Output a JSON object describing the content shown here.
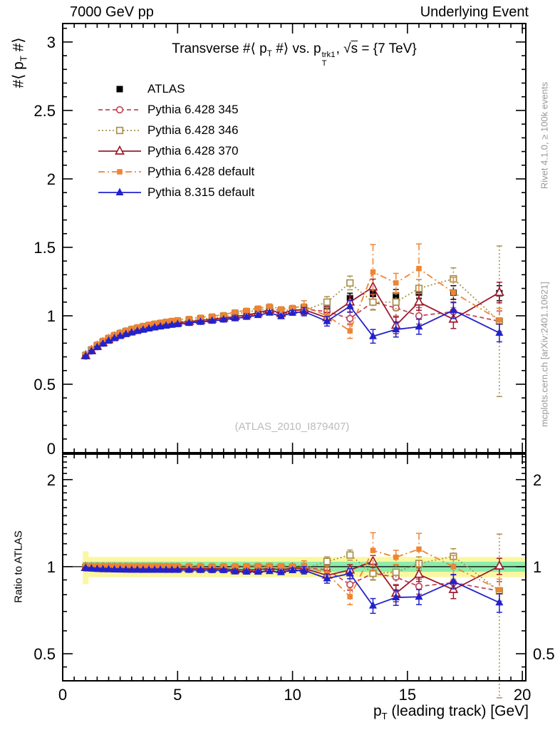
{
  "header": {
    "left": "7000 GeV pp",
    "right": "Underlying Event"
  },
  "title_parts": {
    "pre": "Transverse #⟨ p",
    "sub1": "T",
    "mid": " #⟩ vs. p",
    "sup2": "trk1",
    "sub2": "T",
    "sqrt": ", √",
    "s": "s",
    "post": " = {7 TeV}"
  },
  "ylabel_parts": {
    "pre": "#⟨ p",
    "sub": "T",
    "post": " #⟩"
  },
  "xlabel_parts": {
    "pre": "p",
    "sub": "T",
    "post": " (leading track) [GeV]"
  },
  "ratio_label": "Ratio to ATLAS",
  "watermark": "(ATLAS_2010_I879407)",
  "side_notes": {
    "top": "Rivet 4.1.0, ≥ 100k events",
    "bottom": "mcplots.cern.ch [arXiv:2401.10621]"
  },
  "colors": {
    "frame": "#000000",
    "band_green": "#8cecaa",
    "band_yellow": "#faf7a0",
    "note_gray": "#999999",
    "watermark_gray": "#bbbbbb"
  },
  "chart_data": {
    "type": "line",
    "title": "Transverse #⟨ p_T #⟩ vs. p_T^trk1, √s = {7 TeV}",
    "xlabel": "p_T (leading track) [GeV]",
    "ylabel": "#⟨ p_T #⟩",
    "ratio_ylabel": "Ratio to ATLAS",
    "xlim": [
      0,
      20.15
    ],
    "ylim_main": [
      0,
      3.135
    ],
    "ylim_ratio": [
      0.403,
      2.45
    ],
    "ratio_scale": "log",
    "x_ticks": [
      0,
      5,
      10,
      15,
      20
    ],
    "main_y_ticks": [
      0.5,
      1,
      1.5,
      2,
      2.5,
      3
    ],
    "main_y_zero_label": "0",
    "ratio_y_ticks": [
      0.5,
      1,
      2
    ],
    "ratio_y_minor": [
      0.45,
      0.6,
      0.7,
      0.8,
      0.9,
      1.1,
      1.2,
      1.3,
      1.4,
      1.5,
      1.6,
      1.7,
      1.8,
      1.9,
      2.1,
      2.2,
      2.3,
      2.4
    ],
    "legend_position": "top-left",
    "grid": false,
    "bands": {
      "x_start": 0.875,
      "first_bin_end": 1.125,
      "yellow_first": 0.13,
      "yellow": 0.08,
      "green": 0.04
    },
    "x": [
      1.0,
      1.25,
      1.5,
      1.75,
      2.0,
      2.25,
      2.5,
      2.75,
      3.0,
      3.25,
      3.5,
      3.75,
      4.0,
      4.25,
      4.5,
      4.75,
      5.0,
      5.5,
      6.0,
      6.5,
      7.0,
      7.5,
      8.0,
      8.5,
      9.0,
      9.5,
      10.0,
      10.5,
      11.5,
      12.5,
      13.5,
      14.5,
      15.5,
      17.0,
      19.0
    ],
    "series": [
      {
        "name": "ATLAS",
        "color": "#000000",
        "marker": "fsq",
        "msize": 9,
        "line": "none",
        "dash": "",
        "is_reference": true,
        "values": [
          0.713,
          0.752,
          0.785,
          0.812,
          0.835,
          0.855,
          0.872,
          0.887,
          0.9,
          0.911,
          0.921,
          0.93,
          0.938,
          0.945,
          0.952,
          0.958,
          0.963,
          0.972,
          0.981,
          0.99,
          1.0,
          1.02,
          1.032,
          1.046,
          1.06,
          1.042,
          1.052,
          1.06,
          1.055,
          1.13,
          1.16,
          1.15,
          1.17,
          1.17,
          1.165
        ],
        "errors": [
          0.008,
          0.008,
          0.008,
          0.008,
          0.008,
          0.008,
          0.008,
          0.008,
          0.009,
          0.009,
          0.009,
          0.009,
          0.01,
          0.01,
          0.01,
          0.01,
          0.01,
          0.011,
          0.012,
          0.012,
          0.013,
          0.014,
          0.015,
          0.016,
          0.018,
          0.018,
          0.02,
          0.025,
          0.028,
          0.035,
          0.04,
          0.042,
          0.045,
          0.05,
          0.055
        ]
      },
      {
        "name": "Pythia 6.428 345",
        "color": "#c0485a",
        "marker": "ocir",
        "msize": 8.6,
        "line": "dash",
        "dash": "6 4",
        "is_reference": false,
        "values": [
          0.706,
          0.743,
          0.774,
          0.8,
          0.822,
          0.841,
          0.857,
          0.871,
          0.883,
          0.894,
          0.903,
          0.912,
          0.919,
          0.926,
          0.932,
          0.938,
          0.943,
          0.951,
          0.959,
          0.967,
          0.976,
          0.986,
          0.997,
          1.012,
          1.038,
          1.008,
          1.032,
          1.05,
          1.03,
          0.98,
          1.1,
          1.058,
          1.0,
          1.03,
          0.96
        ],
        "errors": [
          0.006,
          0.006,
          0.006,
          0.006,
          0.006,
          0.006,
          0.006,
          0.006,
          0.006,
          0.006,
          0.006,
          0.006,
          0.007,
          0.007,
          0.007,
          0.007,
          0.007,
          0.008,
          0.009,
          0.009,
          0.01,
          0.011,
          0.012,
          0.014,
          0.016,
          0.016,
          0.018,
          0.035,
          0.038,
          0.045,
          0.055,
          0.06,
          0.06,
          0.065,
          0.075
        ]
      },
      {
        "name": "Pythia 6.428 346",
        "color": "#a8924d",
        "marker": "osq",
        "msize": 8.6,
        "line": "dot",
        "dash": "2 3",
        "is_reference": false,
        "values": [
          0.71,
          0.748,
          0.78,
          0.807,
          0.83,
          0.85,
          0.866,
          0.881,
          0.894,
          0.905,
          0.915,
          0.924,
          0.932,
          0.939,
          0.946,
          0.952,
          0.957,
          0.966,
          0.974,
          0.983,
          0.993,
          1.012,
          1.026,
          1.042,
          1.056,
          1.036,
          1.046,
          1.04,
          1.1,
          1.24,
          1.1,
          1.1,
          1.2,
          1.27,
          0.96
        ],
        "errors": [
          0.006,
          0.006,
          0.006,
          0.006,
          0.006,
          0.006,
          0.006,
          0.006,
          0.006,
          0.006,
          0.006,
          0.006,
          0.007,
          0.007,
          0.007,
          0.007,
          0.007,
          0.008,
          0.009,
          0.009,
          0.01,
          0.011,
          0.012,
          0.014,
          0.016,
          0.016,
          0.018,
          0.038,
          0.04,
          0.05,
          0.058,
          0.062,
          0.065,
          0.08,
          0.55
        ]
      },
      {
        "name": "Pythia 6.428 370",
        "color": "#9e1a2c",
        "marker": "otri",
        "msize": 11,
        "line": "solid",
        "dash": "",
        "is_reference": false,
        "values": [
          0.708,
          0.745,
          0.777,
          0.803,
          0.826,
          0.845,
          0.862,
          0.876,
          0.888,
          0.899,
          0.908,
          0.917,
          0.925,
          0.932,
          0.938,
          0.944,
          0.949,
          0.958,
          0.966,
          0.975,
          0.984,
          0.994,
          1.006,
          1.021,
          1.046,
          1.016,
          1.04,
          1.045,
          0.985,
          1.1,
          1.21,
          0.93,
          1.1,
          0.975,
          1.17
        ],
        "errors": [
          0.006,
          0.006,
          0.006,
          0.006,
          0.006,
          0.006,
          0.006,
          0.006,
          0.006,
          0.006,
          0.006,
          0.006,
          0.007,
          0.007,
          0.007,
          0.007,
          0.007,
          0.008,
          0.009,
          0.009,
          0.01,
          0.011,
          0.012,
          0.014,
          0.016,
          0.016,
          0.018,
          0.035,
          0.04,
          0.048,
          0.058,
          0.06,
          0.06,
          0.068,
          0.075
        ]
      },
      {
        "name": "Pythia 6.428 default",
        "color": "#ef8433",
        "marker": "fsq",
        "msize": 7.5,
        "line": "dashdot",
        "dash": "9 4 2 4",
        "is_reference": false,
        "values": [
          0.721,
          0.76,
          0.793,
          0.82,
          0.843,
          0.863,
          0.88,
          0.895,
          0.908,
          0.919,
          0.929,
          0.938,
          0.946,
          0.953,
          0.96,
          0.966,
          0.971,
          0.98,
          0.989,
          0.998,
          1.008,
          1.028,
          1.04,
          1.056,
          1.07,
          1.05,
          1.058,
          1.07,
          1.0,
          0.89,
          1.32,
          1.24,
          1.345,
          1.17,
          0.97
        ],
        "errors": [
          0.006,
          0.006,
          0.006,
          0.006,
          0.006,
          0.006,
          0.006,
          0.006,
          0.006,
          0.006,
          0.006,
          0.006,
          0.007,
          0.007,
          0.007,
          0.007,
          0.007,
          0.008,
          0.009,
          0.009,
          0.01,
          0.011,
          0.012,
          0.014,
          0.016,
          0.016,
          0.018,
          0.04,
          0.045,
          0.055,
          0.2,
          0.07,
          0.18,
          0.11,
          0.085
        ]
      },
      {
        "name": "Pythia 8.315 default",
        "color": "#2222cc",
        "marker": "ftri",
        "msize": 11,
        "line": "solid",
        "dash": "",
        "is_reference": false,
        "values": [
          0.705,
          0.74,
          0.77,
          0.795,
          0.817,
          0.835,
          0.851,
          0.865,
          0.877,
          0.888,
          0.897,
          0.906,
          0.914,
          0.921,
          0.927,
          0.933,
          0.938,
          0.947,
          0.955,
          0.963,
          0.972,
          0.981,
          0.991,
          1.004,
          1.022,
          0.996,
          1.022,
          1.03,
          0.96,
          1.07,
          0.85,
          0.9,
          0.92,
          1.04,
          0.875
        ],
        "errors": [
          0.006,
          0.006,
          0.006,
          0.006,
          0.006,
          0.006,
          0.006,
          0.006,
          0.006,
          0.006,
          0.006,
          0.006,
          0.007,
          0.007,
          0.007,
          0.007,
          0.007,
          0.008,
          0.009,
          0.009,
          0.01,
          0.011,
          0.012,
          0.014,
          0.016,
          0.016,
          0.018,
          0.03,
          0.035,
          0.042,
          0.05,
          0.055,
          0.055,
          0.06,
          0.065
        ]
      }
    ]
  }
}
